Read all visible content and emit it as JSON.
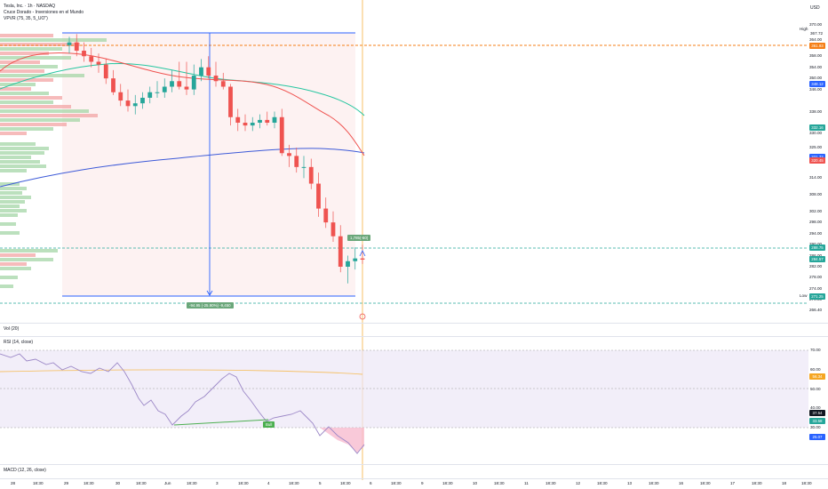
{
  "header": {
    "symbol_line": "Tesla, Inc. · 1h · NASDAQ",
    "study1": "Cruce Dorado - Inversiones en el Mundo",
    "study2": "VPVR (75, 35, 5_UO\")",
    "currency": "USD"
  },
  "price_axis": {
    "ticks": [
      "370.00",
      "364.00",
      "358.00",
      "354.00",
      "350.00",
      "346.00",
      "338.00",
      "330.00",
      "325.00",
      "320.00",
      "314.00",
      "308.00",
      "302.00",
      "298.00",
      "294.00",
      "290.00",
      "286.00",
      "282.00",
      "278.00",
      "274.00",
      "270.00",
      "266.40"
    ],
    "high_label": "High",
    "high_value": "367.72",
    "low_label": "Low",
    "low_value": "273.22",
    "tags": [
      {
        "value": "361.93",
        "color": "#f57f17"
      },
      {
        "value": "348.12",
        "color": "#2962ff"
      },
      {
        "value": "332.16",
        "color": "#26a69a"
      },
      {
        "value": "321.72",
        "color": "#2962ff"
      },
      {
        "value": "320.45",
        "color": "#ef5350"
      },
      {
        "value": "288.75",
        "color": "#26a69a"
      },
      {
        "value": "284.57",
        "color": "#26a69a"
      },
      {
        "value": "271.25",
        "color": "#26a69a"
      }
    ]
  },
  "measure": {
    "upper_label": "1,785(-60)",
    "lower_label": "-94.95 (-25.90%) -9,450"
  },
  "volume": {
    "legend": "Vol (20)"
  },
  "rsi": {
    "legend": "RSI (14, close)",
    "ticks": [
      "70.00",
      "60.00",
      "50.00",
      "40.00",
      "30.00"
    ],
    "tags": [
      {
        "value": "56.34",
        "color": "#f5a623"
      },
      {
        "value": "37.54",
        "color": "#131722"
      },
      {
        "value": "33.58",
        "color": "#26a69a"
      },
      {
        "value": "25.07",
        "color": "#2962ff"
      }
    ],
    "bull_label": "Bull"
  },
  "macd": {
    "legend": "MACD (12, 26, close)"
  },
  "time_axis": [
    "28",
    "18:30",
    "29",
    "18:30",
    "30",
    "18:30",
    "Jun",
    "18:30",
    "3",
    "18:30",
    "4",
    "18:30",
    "5",
    "18:30",
    "6",
    "18:30",
    "9",
    "18:30",
    "10",
    "18:30",
    "11",
    "18:30",
    "12",
    "18:30",
    "13",
    "18:30",
    "16",
    "18:30",
    "17",
    "18:30",
    "18",
    "18:30"
  ],
  "colors": {
    "up": "#26a69a",
    "down": "#ef5350",
    "ma_fast": "#ef5350",
    "ma_mid": "#26c6a0",
    "ma_slow": "#3d5ad8",
    "measure": "#2962ff",
    "rsi_line": "#9c88c7"
  },
  "chart_data": {
    "type": "candlestick",
    "x": [
      "May 29 18:30",
      "May 30 16:30",
      "May 30 17:30",
      "May 30 18:30",
      "May 30 19:30",
      "Jun 2 10:30",
      "Jun 2 11:30",
      "Jun 2 12:30",
      "Jun 2 13:30",
      "Jun 2 14:30",
      "Jun 2 15:30",
      "Jun 2 16:30",
      "Jun 2 17:30",
      "Jun 2 18:30",
      "Jun 2 19:30",
      "Jun 3 10:30",
      "Jun 3 11:30",
      "Jun 3 12:30",
      "Jun 3 13:30",
      "Jun 3 14:30",
      "Jun 3 15:30",
      "Jun 3 16:30",
      "Jun 3 17:30",
      "Jun 3 18:30",
      "Jun 3 19:30",
      "Jun 4 10:30",
      "Jun 4 11:30",
      "Jun 4 12:30",
      "Jun 4 13:30",
      "Jun 4 14:30",
      "Jun 4 15:30",
      "Jun 4 16:30",
      "Jun 4 17:30",
      "Jun 4 18:30",
      "Jun 4 19:30",
      "Jun 5 10:30",
      "Jun 5 11:30",
      "Jun 5 12:30",
      "Jun 5 13:30",
      "Jun 5 14:30",
      "Jun 5 15:30"
    ],
    "open": [
      362,
      363,
      360,
      358,
      356,
      355,
      350,
      345,
      342,
      340,
      341,
      343,
      345,
      345,
      347,
      349,
      347,
      346,
      351,
      354,
      351,
      349,
      347,
      336,
      334,
      333,
      334,
      335,
      334,
      336,
      323,
      322,
      318,
      318,
      312,
      303,
      298,
      293,
      282,
      284,
      285
    ],
    "high": [
      365,
      366,
      363,
      361,
      359,
      357,
      353,
      348,
      346,
      344,
      345,
      347,
      349,
      350,
      353,
      356,
      356,
      355,
      357,
      358,
      356,
      352,
      348,
      339,
      337,
      336,
      337,
      338,
      338,
      339,
      326,
      325,
      322,
      321,
      316,
      307,
      302,
      297,
      286,
      289,
      290
    ],
    "low": [
      359,
      358,
      356,
      354,
      352,
      348,
      344,
      340,
      338,
      337,
      339,
      341,
      343,
      343,
      345,
      346,
      344,
      344,
      349,
      350,
      347,
      346,
      333,
      331,
      331,
      331,
      332,
      333,
      332,
      322,
      318,
      316,
      314,
      310,
      300,
      296,
      291,
      280,
      276,
      281,
      283
    ],
    "close": [
      363,
      360,
      358,
      356,
      355,
      350,
      345,
      342,
      340,
      341,
      343,
      345,
      345,
      347,
      349,
      347,
      346,
      351,
      354,
      351,
      349,
      347,
      336,
      334,
      333,
      334,
      335,
      334,
      336,
      323,
      322,
      318,
      318,
      312,
      303,
      298,
      293,
      282,
      284,
      285,
      284.57
    ],
    "ylim": [
      266.4,
      372
    ]
  }
}
